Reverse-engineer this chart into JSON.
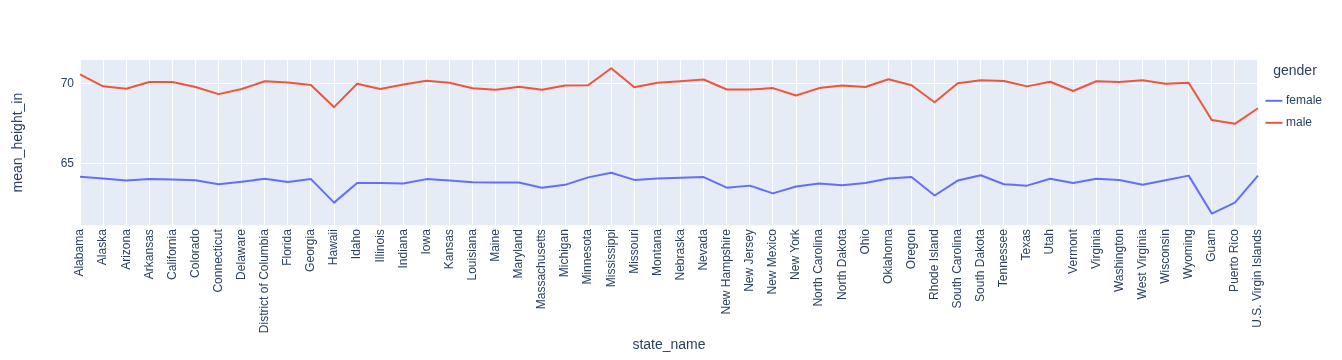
{
  "chart_data": {
    "type": "line",
    "xlabel": "state_name",
    "ylabel": "mean_height_in",
    "legend_title": "gender",
    "legend": "right",
    "grid": true,
    "marker": "none",
    "line_style": "solid",
    "categories": [
      "Alabama",
      "Alaska",
      "Arizona",
      "Arkansas",
      "California",
      "Colorado",
      "Connecticut",
      "Delaware",
      "District of Columbia",
      "Florida",
      "Georgia",
      "Hawaii",
      "Idaho",
      "Illinois",
      "Indiana",
      "Iowa",
      "Kansas",
      "Louisiana",
      "Maine",
      "Maryland",
      "Massachusetts",
      "Michigan",
      "Minnesota",
      "Mississippi",
      "Missouri",
      "Montana",
      "Nebraska",
      "Nevada",
      "New Hampshire",
      "New Jersey",
      "New Mexico",
      "New York",
      "North Carolina",
      "North Dakota",
      "Ohio",
      "Oklahoma",
      "Oregon",
      "Rhode Island",
      "South Carolina",
      "South Dakota",
      "Tennessee",
      "Texas",
      "Utah",
      "Vermont",
      "Virginia",
      "Washington",
      "West Virginia",
      "Wisconsin",
      "Wyoming",
      "Guam",
      "Puerto Rico",
      "U.S. Virgin Islands"
    ],
    "ylim": [
      61.1,
      71.5
    ],
    "yticks": [
      65,
      70
    ],
    "series": [
      {
        "name": "female",
        "color": "#636efa",
        "values": [
          64.15,
          64.04,
          63.91,
          64.0,
          63.97,
          63.93,
          63.68,
          63.84,
          64.02,
          63.82,
          64.0,
          62.52,
          63.75,
          63.75,
          63.73,
          64.0,
          63.91,
          63.8,
          63.79,
          63.79,
          63.46,
          63.64,
          64.11,
          64.4,
          63.95,
          64.04,
          64.08,
          64.13,
          63.46,
          63.59,
          63.1,
          63.53,
          63.73,
          63.62,
          63.75,
          64.04,
          64.13,
          62.97,
          63.91,
          64.24,
          63.68,
          63.59,
          64.02,
          63.75,
          64.02,
          63.95,
          63.64,
          63.93,
          64.22,
          61.83,
          62.52,
          64.22
        ]
      },
      {
        "name": "male",
        "color": "#ef553b",
        "values": [
          70.6,
          69.84,
          69.69,
          70.11,
          70.11,
          69.8,
          69.35,
          69.67,
          70.16,
          70.09,
          69.93,
          68.53,
          70.0,
          69.67,
          69.96,
          70.2,
          70.07,
          69.72,
          69.62,
          69.82,
          69.62,
          69.89,
          69.91,
          70.98,
          69.78,
          70.07,
          70.16,
          70.27,
          69.64,
          69.64,
          69.73,
          69.26,
          69.73,
          69.89,
          69.8,
          70.29,
          69.91,
          68.84,
          70.04,
          70.22,
          70.18,
          69.84,
          70.13,
          69.55,
          70.16,
          70.11,
          70.22,
          70.0,
          70.07,
          67.72,
          67.48,
          68.46
        ]
      }
    ]
  }
}
